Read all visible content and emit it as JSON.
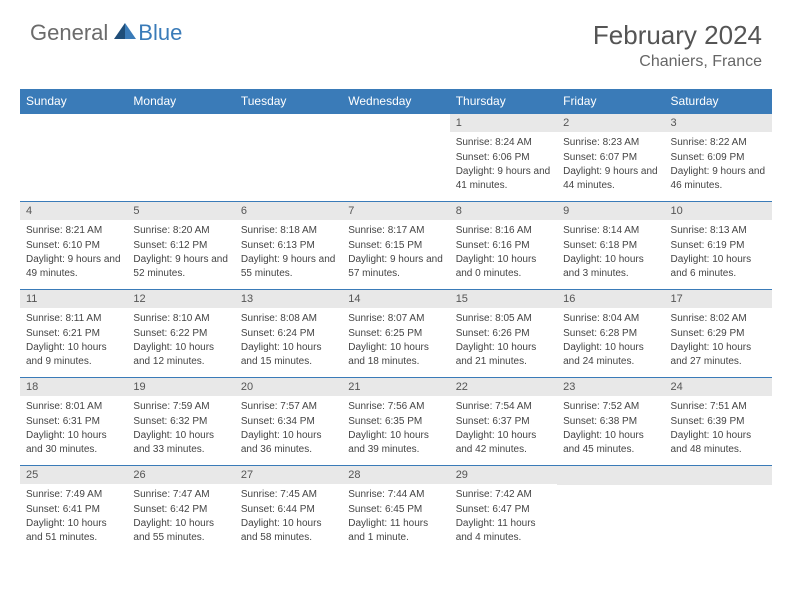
{
  "logo": {
    "part1": "General",
    "part2": "Blue"
  },
  "title": "February 2024",
  "location": "Chaniers, France",
  "colors": {
    "header_bg": "#3a7bb8",
    "header_text": "#ffffff",
    "daynum_bg": "#e8e8e8",
    "daynum_text": "#555555",
    "body_text": "#444444",
    "divider": "#3a7bb8",
    "logo_gray": "#6b6b6b",
    "logo_blue": "#3a7bb8",
    "title_color": "#555555"
  },
  "weekdays": [
    "Sunday",
    "Monday",
    "Tuesday",
    "Wednesday",
    "Thursday",
    "Friday",
    "Saturday"
  ],
  "weeks": [
    [
      null,
      null,
      null,
      null,
      {
        "n": "1",
        "sunrise": "8:24 AM",
        "sunset": "6:06 PM",
        "daylight": "9 hours and 41 minutes."
      },
      {
        "n": "2",
        "sunrise": "8:23 AM",
        "sunset": "6:07 PM",
        "daylight": "9 hours and 44 minutes."
      },
      {
        "n": "3",
        "sunrise": "8:22 AM",
        "sunset": "6:09 PM",
        "daylight": "9 hours and 46 minutes."
      }
    ],
    [
      {
        "n": "4",
        "sunrise": "8:21 AM",
        "sunset": "6:10 PM",
        "daylight": "9 hours and 49 minutes."
      },
      {
        "n": "5",
        "sunrise": "8:20 AM",
        "sunset": "6:12 PM",
        "daylight": "9 hours and 52 minutes."
      },
      {
        "n": "6",
        "sunrise": "8:18 AM",
        "sunset": "6:13 PM",
        "daylight": "9 hours and 55 minutes."
      },
      {
        "n": "7",
        "sunrise": "8:17 AM",
        "sunset": "6:15 PM",
        "daylight": "9 hours and 57 minutes."
      },
      {
        "n": "8",
        "sunrise": "8:16 AM",
        "sunset": "6:16 PM",
        "daylight": "10 hours and 0 minutes."
      },
      {
        "n": "9",
        "sunrise": "8:14 AM",
        "sunset": "6:18 PM",
        "daylight": "10 hours and 3 minutes."
      },
      {
        "n": "10",
        "sunrise": "8:13 AM",
        "sunset": "6:19 PM",
        "daylight": "10 hours and 6 minutes."
      }
    ],
    [
      {
        "n": "11",
        "sunrise": "8:11 AM",
        "sunset": "6:21 PM",
        "daylight": "10 hours and 9 minutes."
      },
      {
        "n": "12",
        "sunrise": "8:10 AM",
        "sunset": "6:22 PM",
        "daylight": "10 hours and 12 minutes."
      },
      {
        "n": "13",
        "sunrise": "8:08 AM",
        "sunset": "6:24 PM",
        "daylight": "10 hours and 15 minutes."
      },
      {
        "n": "14",
        "sunrise": "8:07 AM",
        "sunset": "6:25 PM",
        "daylight": "10 hours and 18 minutes."
      },
      {
        "n": "15",
        "sunrise": "8:05 AM",
        "sunset": "6:26 PM",
        "daylight": "10 hours and 21 minutes."
      },
      {
        "n": "16",
        "sunrise": "8:04 AM",
        "sunset": "6:28 PM",
        "daylight": "10 hours and 24 minutes."
      },
      {
        "n": "17",
        "sunrise": "8:02 AM",
        "sunset": "6:29 PM",
        "daylight": "10 hours and 27 minutes."
      }
    ],
    [
      {
        "n": "18",
        "sunrise": "8:01 AM",
        "sunset": "6:31 PM",
        "daylight": "10 hours and 30 minutes."
      },
      {
        "n": "19",
        "sunrise": "7:59 AM",
        "sunset": "6:32 PM",
        "daylight": "10 hours and 33 minutes."
      },
      {
        "n": "20",
        "sunrise": "7:57 AM",
        "sunset": "6:34 PM",
        "daylight": "10 hours and 36 minutes."
      },
      {
        "n": "21",
        "sunrise": "7:56 AM",
        "sunset": "6:35 PM",
        "daylight": "10 hours and 39 minutes."
      },
      {
        "n": "22",
        "sunrise": "7:54 AM",
        "sunset": "6:37 PM",
        "daylight": "10 hours and 42 minutes."
      },
      {
        "n": "23",
        "sunrise": "7:52 AM",
        "sunset": "6:38 PM",
        "daylight": "10 hours and 45 minutes."
      },
      {
        "n": "24",
        "sunrise": "7:51 AM",
        "sunset": "6:39 PM",
        "daylight": "10 hours and 48 minutes."
      }
    ],
    [
      {
        "n": "25",
        "sunrise": "7:49 AM",
        "sunset": "6:41 PM",
        "daylight": "10 hours and 51 minutes."
      },
      {
        "n": "26",
        "sunrise": "7:47 AM",
        "sunset": "6:42 PM",
        "daylight": "10 hours and 55 minutes."
      },
      {
        "n": "27",
        "sunrise": "7:45 AM",
        "sunset": "6:44 PM",
        "daylight": "10 hours and 58 minutes."
      },
      {
        "n": "28",
        "sunrise": "7:44 AM",
        "sunset": "6:45 PM",
        "daylight": "11 hours and 1 minute."
      },
      {
        "n": "29",
        "sunrise": "7:42 AM",
        "sunset": "6:47 PM",
        "daylight": "11 hours and 4 minutes."
      },
      null,
      null
    ]
  ],
  "labels": {
    "sunrise": "Sunrise:",
    "sunset": "Sunset:",
    "daylight": "Daylight:"
  }
}
